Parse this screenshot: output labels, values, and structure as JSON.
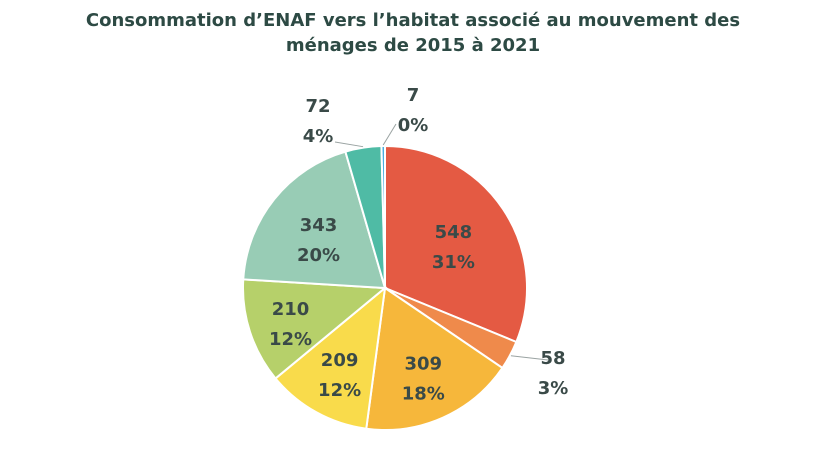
{
  "chart_data": {
    "type": "pie",
    "title_lines": [
      "Consommation d’ENAF vers l’habitat associé au mouvement des",
      "ménages de 2015 à 2021"
    ],
    "categories": [
      "",
      "",
      "",
      "",
      "",
      "",
      "",
      ""
    ],
    "values": [
      548,
      58,
      309,
      209,
      210,
      343,
      72,
      7
    ],
    "value_labels": [
      "548",
      "58",
      "309",
      "209",
      "210",
      "343",
      "72",
      "7"
    ],
    "percent_labels": [
      "31%",
      "3%",
      "18%",
      "12%",
      "12%",
      "20%",
      "4%",
      "0%"
    ],
    "colors": [
      "#e45a43",
      "#ef8a4b",
      "#f6b73b",
      "#f9db4b",
      "#b6d06a",
      "#98ccb5",
      "#4fbba5",
      "#4aaee0"
    ],
    "start_angle": "12 o'clock",
    "direction": "clockwise",
    "legend": "none"
  }
}
